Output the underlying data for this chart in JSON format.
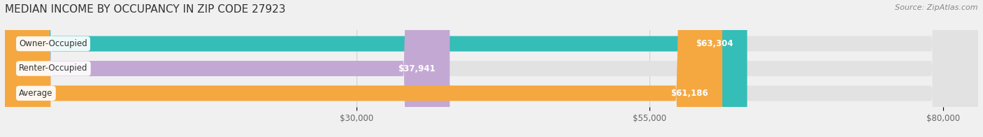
{
  "title": "MEDIAN INCOME BY OCCUPANCY IN ZIP CODE 27923",
  "source": "Source: ZipAtlas.com",
  "categories": [
    "Owner-Occupied",
    "Renter-Occupied",
    "Average"
  ],
  "values": [
    63304,
    37941,
    61186
  ],
  "bar_colors": [
    "#35bdb8",
    "#c4a8d4",
    "#f5a840"
  ],
  "bar_labels": [
    "$63,304",
    "$37,941",
    "$61,186"
  ],
  "x_min": 0,
  "x_max": 83000,
  "x_ticks": [
    30000,
    55000,
    80000
  ],
  "x_tick_labels": [
    "$30,000",
    "$55,000",
    "$80,000"
  ],
  "background_color": "#f0f0f0",
  "bar_background_color": "#e2e2e2",
  "title_fontsize": 11,
  "source_fontsize": 8,
  "label_fontsize": 8.5,
  "tick_fontsize": 8.5,
  "bar_height": 0.62,
  "cat_label_fontsize": 8.5
}
